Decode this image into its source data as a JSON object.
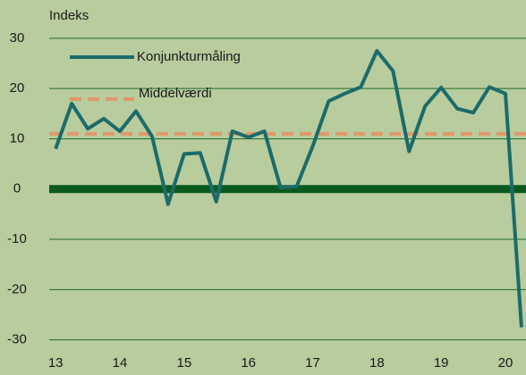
{
  "chart_data": {
    "type": "line",
    "ylabel": "Indeks",
    "x": [
      2013,
      2013.25,
      2013.5,
      2013.75,
      2014,
      2014.25,
      2014.5,
      2014.75,
      2015,
      2015.25,
      2015.5,
      2015.75,
      2016,
      2016.25,
      2016.5,
      2016.75,
      2017,
      2017.25,
      2017.5,
      2017.75,
      2018,
      2018.25,
      2018.5,
      2018.75,
      2019,
      2019.25,
      2019.5,
      2019.75,
      2020,
      2020.25
    ],
    "series": [
      {
        "name": "Konjunkturmåling",
        "color": "#1b6b6a",
        "values": [
          8,
          17,
          12,
          14,
          11.5,
          15.5,
          10.5,
          -3,
          7,
          7.2,
          -2.5,
          11.5,
          10.3,
          11.5,
          0.3,
          0.5,
          8.5,
          17.5,
          19,
          20.3,
          27.5,
          23.5,
          7.5,
          16.5,
          20.2,
          16,
          15.2,
          20.3,
          19,
          -27.5
        ]
      }
    ],
    "reference_lines": [
      {
        "name": "Middelværdi",
        "value": 11,
        "color": "#e0986a"
      }
    ],
    "zero_line_color": "#0b5a1f",
    "xlim": [
      2012.9,
      2020.32
    ],
    "xticks": [
      {
        "value": 2013,
        "label": "13"
      },
      {
        "value": 2014,
        "label": "14"
      },
      {
        "value": 2015,
        "label": "15"
      },
      {
        "value": 2016,
        "label": "16"
      },
      {
        "value": 2017,
        "label": "17"
      },
      {
        "value": 2018,
        "label": "18"
      },
      {
        "value": 2019,
        "label": "19"
      },
      {
        "value": 2020,
        "label": "20"
      }
    ],
    "ylim": [
      -30.6,
      31.4
    ],
    "yticks": [
      30,
      20,
      10,
      0,
      -10,
      -20,
      -30
    ],
    "grid": true,
    "grid_color": "#1f6b2a"
  }
}
